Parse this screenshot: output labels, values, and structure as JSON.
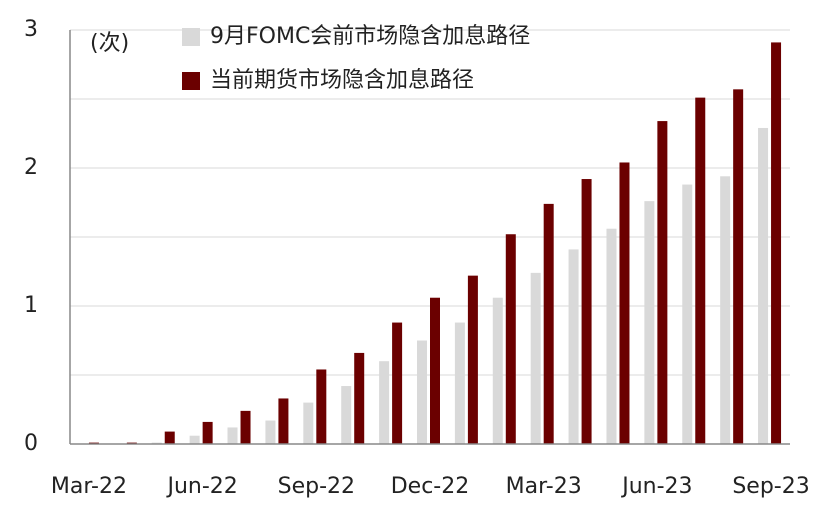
{
  "chart_data": {
    "type": "bar",
    "annotation": "(次)",
    "categories": [
      "Mar-22",
      null,
      null,
      "Jun-22",
      null,
      null,
      "Sep-22",
      null,
      null,
      "Dec-22",
      null,
      null,
      "Mar-23",
      null,
      null,
      "Jun-23",
      null,
      null,
      "Sep-23"
    ],
    "series": [
      {
        "name": "9月FOMC会前市场隐含加息路径",
        "color": "#d9d9d9",
        "values": [
          0,
          0,
          0.01,
          0.06,
          0.12,
          0.17,
          0.3,
          0.42,
          0.6,
          0.75,
          0.88,
          1.06,
          1.24,
          1.41,
          1.56,
          1.76,
          1.88,
          1.94,
          2.29
        ]
      },
      {
        "name": "当前期货市场隐含加息路径",
        "color": "#6b0000",
        "values": [
          0.01,
          0.01,
          0.09,
          0.16,
          0.24,
          0.33,
          0.54,
          0.66,
          0.88,
          1.06,
          1.22,
          1.52,
          1.74,
          1.92,
          2.04,
          2.34,
          2.51,
          2.57,
          2.91
        ]
      }
    ],
    "ylim": [
      0,
      3
    ],
    "yticks": [
      0,
      1,
      2,
      3
    ],
    "minor_yticks": [
      0.5,
      1.5,
      2.5
    ],
    "grid": true
  }
}
